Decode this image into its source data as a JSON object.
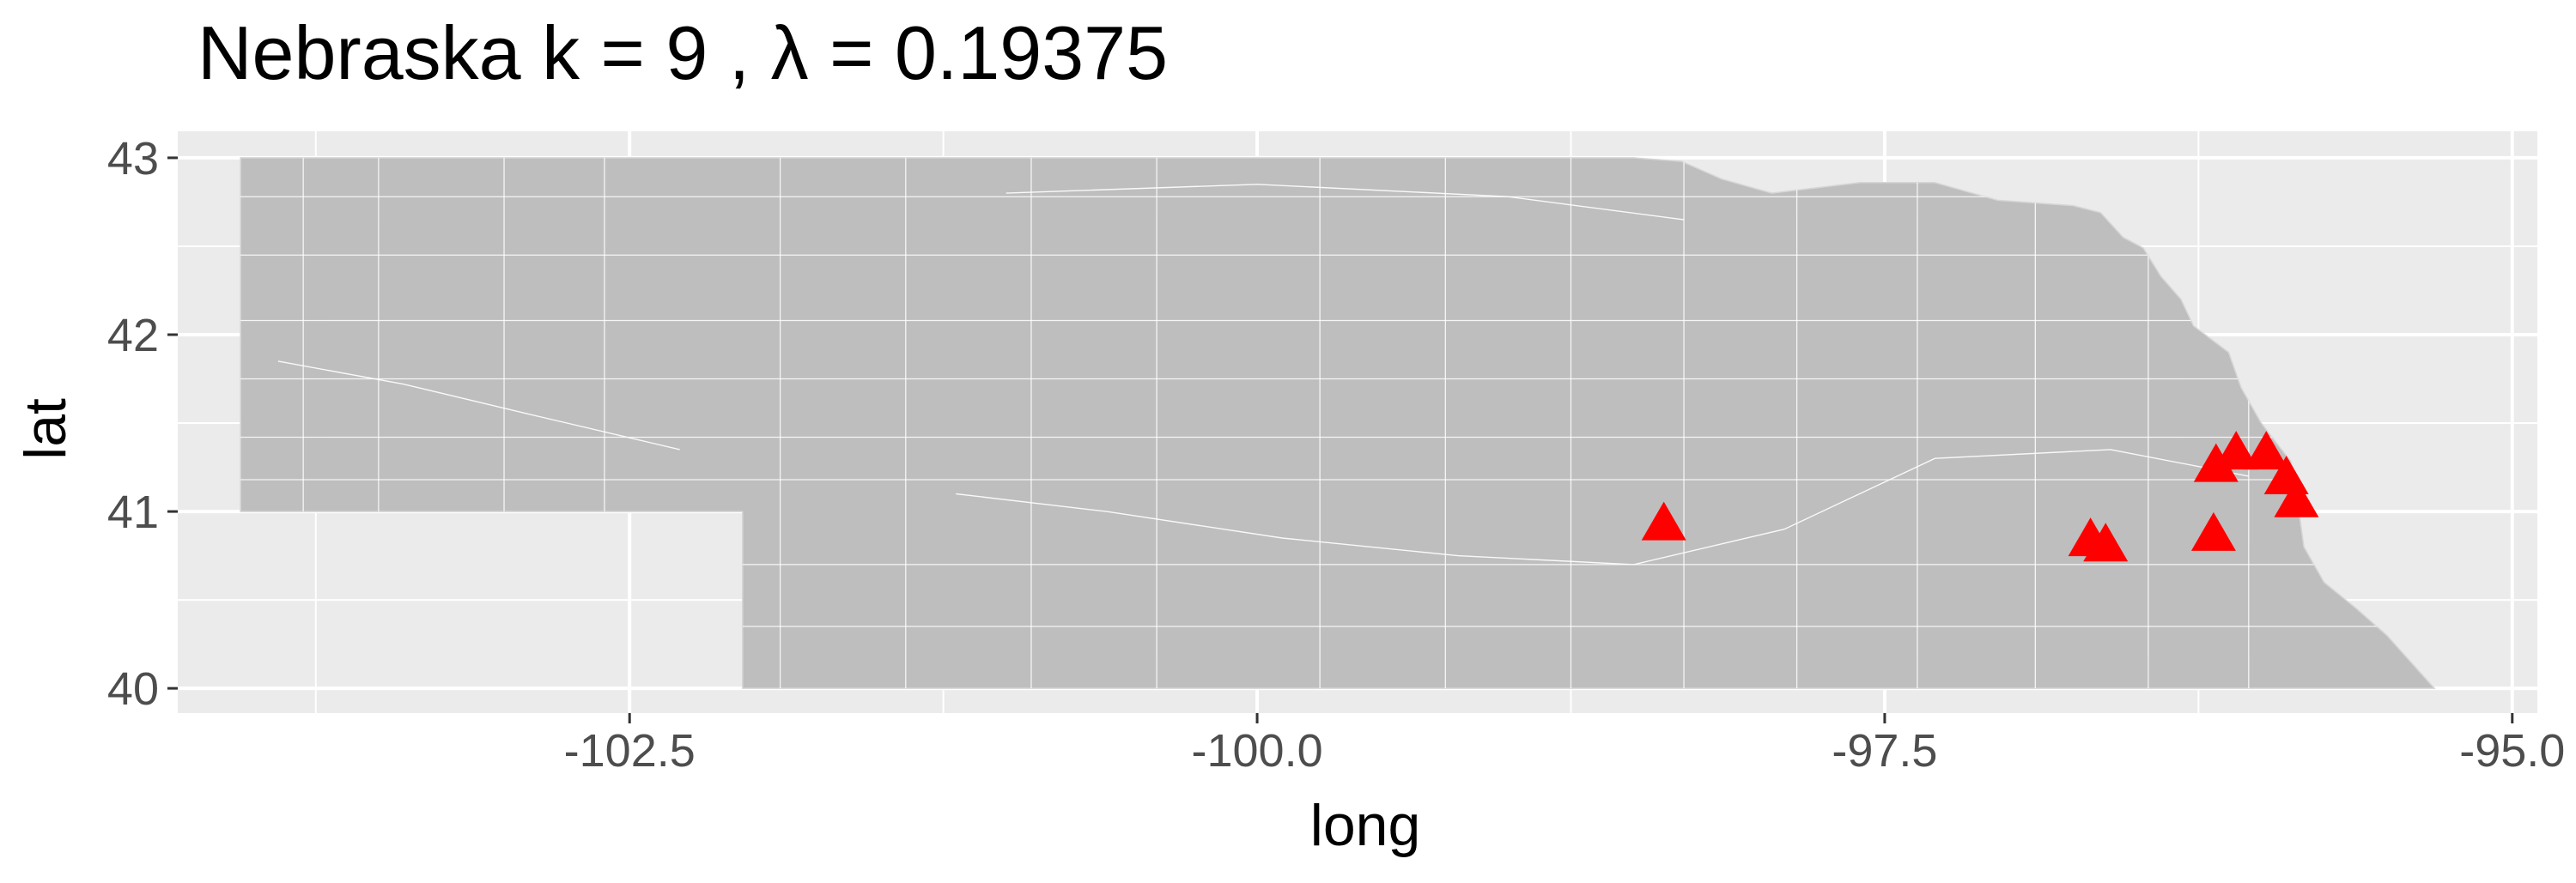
{
  "chart_data": {
    "type": "scatter",
    "title": "Nebraska  k =  9 ,  λ  =  0.19375",
    "xlabel": "long",
    "ylabel": "lat",
    "xlim": [
      -104.3,
      -94.9
    ],
    "ylim": [
      39.86,
      43.15
    ],
    "x_ticks": [
      -102.5,
      -100.0,
      -97.5,
      -95.0
    ],
    "x_tick_labels": [
      "-102.5",
      "-100.0",
      "-97.5",
      "-95.0"
    ],
    "y_ticks": [
      40,
      41,
      42,
      43
    ],
    "y_tick_labels": [
      "40",
      "41",
      "42",
      "43"
    ],
    "grid": true,
    "background_color": "#ebebeb",
    "map_fill_color": "#bebebe",
    "border_color": "#ffffff",
    "marker": "triangle",
    "marker_color": "#ff0000",
    "points": [
      {
        "x": -98.38,
        "y": 40.92
      },
      {
        "x": -96.68,
        "y": 40.83
      },
      {
        "x": -96.62,
        "y": 40.8
      },
      {
        "x": -96.19,
        "y": 40.86
      },
      {
        "x": -96.18,
        "y": 41.25
      },
      {
        "x": -96.1,
        "y": 41.32
      },
      {
        "x": -95.98,
        "y": 41.32
      },
      {
        "x": -95.9,
        "y": 41.18
      },
      {
        "x": -95.86,
        "y": 41.05
      }
    ]
  }
}
